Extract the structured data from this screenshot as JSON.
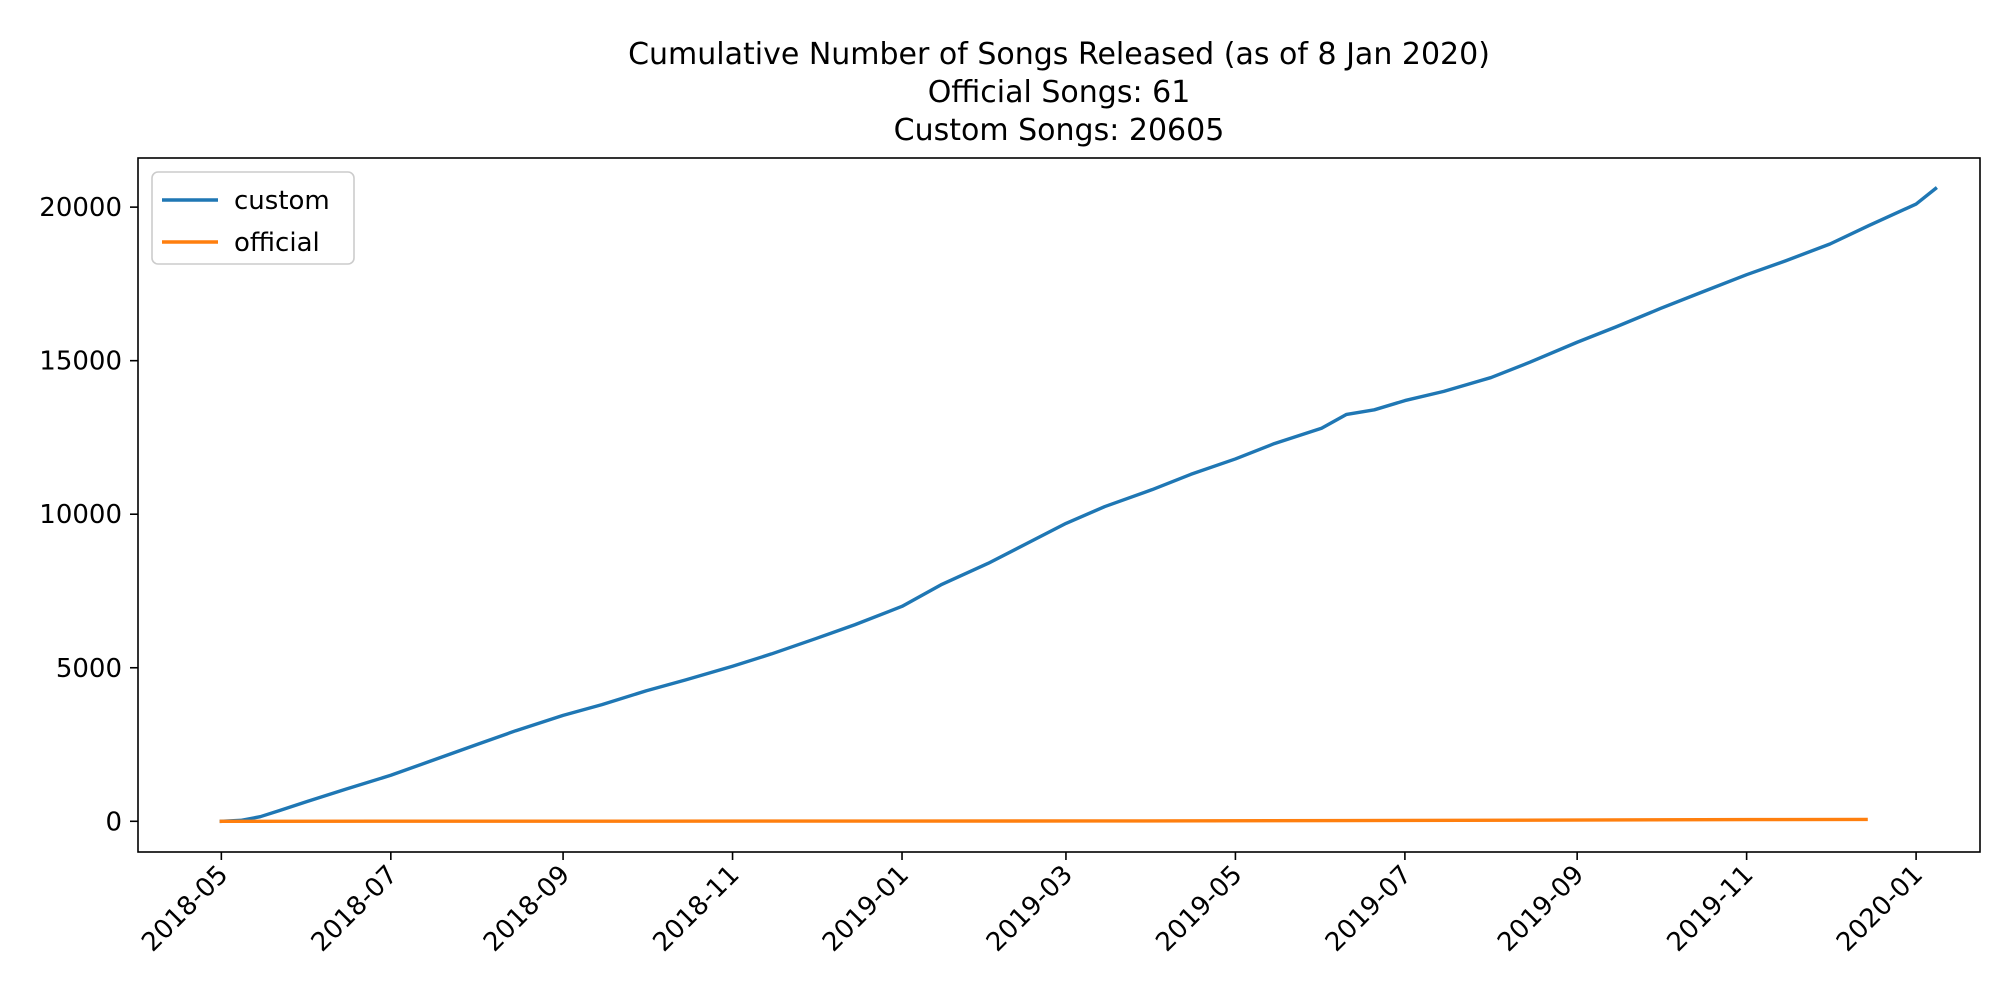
{
  "chart_data": {
    "type": "line",
    "title": "Cumulative Number of Songs Released (as of 8 Jan 2020)\nOfficial Songs: 61\nCustom Songs: 20605",
    "title_lines": [
      "Cumulative Number of Songs Released (as of 8 Jan 2020)",
      "Official Songs: 61",
      "Custom Songs: 20605"
    ],
    "xlabel": "",
    "ylabel": "",
    "xlim": [
      "2018-04-01",
      "2020-01-24"
    ],
    "ylim": [
      -1000,
      21600
    ],
    "x_ticks": [
      "2018-05",
      "2018-07",
      "2018-09",
      "2018-11",
      "2019-01",
      "2019-03",
      "2019-05",
      "2019-07",
      "2019-09",
      "2019-11",
      "2020-01"
    ],
    "y_ticks": [
      0,
      5000,
      10000,
      15000,
      20000
    ],
    "grid": false,
    "legend": {
      "position": "upper-left"
    },
    "series": [
      {
        "name": "custom",
        "color": "#1f77b4",
        "points": [
          [
            "2018-05-01",
            0
          ],
          [
            "2018-05-08",
            30
          ],
          [
            "2018-05-15",
            150
          ],
          [
            "2018-05-22",
            350
          ],
          [
            "2018-06-01",
            650
          ],
          [
            "2018-06-15",
            1050
          ],
          [
            "2018-07-01",
            1500
          ],
          [
            "2018-07-15",
            1950
          ],
          [
            "2018-08-01",
            2500
          ],
          [
            "2018-08-15",
            2950
          ],
          [
            "2018-09-01",
            3450
          ],
          [
            "2018-09-15",
            3800
          ],
          [
            "2018-10-01",
            4250
          ],
          [
            "2018-10-15",
            4600
          ],
          [
            "2018-11-01",
            5050
          ],
          [
            "2018-11-15",
            5450
          ],
          [
            "2018-12-01",
            5950
          ],
          [
            "2018-12-15",
            6400
          ],
          [
            "2019-01-01",
            7000
          ],
          [
            "2019-01-15",
            7700
          ],
          [
            "2019-02-01",
            8400
          ],
          [
            "2019-02-15",
            9050
          ],
          [
            "2019-03-01",
            9700
          ],
          [
            "2019-03-15",
            10250
          ],
          [
            "2019-04-01",
            10800
          ],
          [
            "2019-04-15",
            11300
          ],
          [
            "2019-05-01",
            11800
          ],
          [
            "2019-05-15",
            12300
          ],
          [
            "2019-06-01",
            12800
          ],
          [
            "2019-06-10",
            13250
          ],
          [
            "2019-06-20",
            13400
          ],
          [
            "2019-07-01",
            13700
          ],
          [
            "2019-07-15",
            14000
          ],
          [
            "2019-08-01",
            14450
          ],
          [
            "2019-08-15",
            14950
          ],
          [
            "2019-09-01",
            15600
          ],
          [
            "2019-09-15",
            16100
          ],
          [
            "2019-10-01",
            16700
          ],
          [
            "2019-10-15",
            17200
          ],
          [
            "2019-11-01",
            17800
          ],
          [
            "2019-11-15",
            18250
          ],
          [
            "2019-12-01",
            18800
          ],
          [
            "2019-12-15",
            19400
          ],
          [
            "2020-01-01",
            20100
          ],
          [
            "2020-01-08",
            20605
          ]
        ]
      },
      {
        "name": "official",
        "color": "#ff7f0e",
        "points": [
          [
            "2018-05-01",
            0
          ],
          [
            "2019-03-12",
            10
          ],
          [
            "2019-06-10",
            25
          ],
          [
            "2019-08-28",
            40
          ],
          [
            "2019-11-03",
            55
          ],
          [
            "2019-12-14",
            61
          ]
        ]
      }
    ]
  }
}
